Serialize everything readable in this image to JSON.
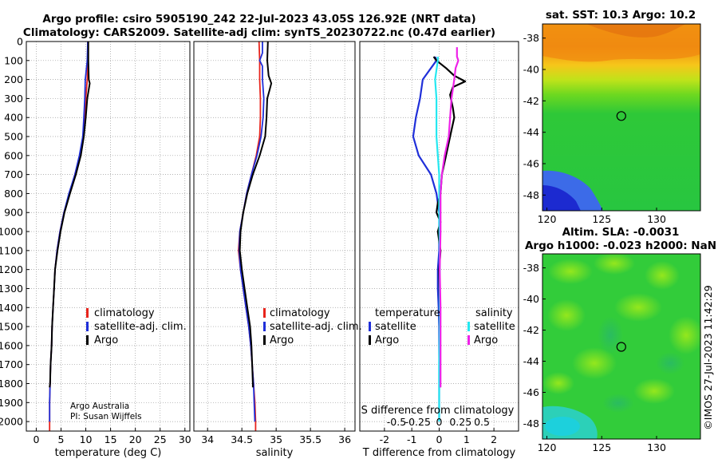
{
  "title_line1": "Argo profile: csiro 5905190_242 22-Jul-2023 43.05S 126.92E (NRT data)",
  "title_line2": "Climatology: CARS2009. Satellite-adj clim: synTS_20230722.nc (0.47d earlier)",
  "watermark": "©IMOS 27-Jul-2023 11:42:29",
  "colors": {
    "climatology": "#e8241c",
    "satellite": "#1f2fd9",
    "argo": "#000000",
    "t_sat": "#25e8f0",
    "s_sat": "#ee22e8"
  },
  "legend_labels": {
    "climatology": "climatology",
    "satellite": "satellite-adj. clim.",
    "argo": "Argo"
  },
  "diff_legend": {
    "temperature": "temperature",
    "salinity": "salinity",
    "satellite": "satellite",
    "argo": "Argo"
  },
  "credits": {
    "line1": "Argo Australia",
    "line2": "PI: Susan Wijffels"
  },
  "sst_title": "sat. SST: 10.3 Argo: 10.2",
  "sla_title1": "Altim. SLA: -0.0031",
  "sla_title2": "Argo h1000: -0.023 h2000: NaN",
  "map_xticks": [
    "120",
    "125",
    "130"
  ],
  "map_yticks": [
    "-38",
    "-40",
    "-42",
    "-44",
    "-46",
    "-48"
  ],
  "chart_data": [
    {
      "type": "line",
      "name": "temperature",
      "xlabel": "temperature (deg C)",
      "ylabel": "",
      "xlim": [
        -2,
        31
      ],
      "ylim": [
        2050,
        0
      ],
      "xticks": [
        0,
        5,
        10,
        15,
        20,
        25,
        30
      ],
      "yticks": [
        0,
        100,
        200,
        300,
        400,
        500,
        600,
        700,
        800,
        900,
        1000,
        1100,
        1200,
        1300,
        1400,
        1500,
        1600,
        1700,
        1800,
        1900,
        2000
      ],
      "series": [
        {
          "name": "climatology",
          "color": "#e8241c",
          "width": 1.8,
          "points": [
            [
              10.4,
              0
            ],
            [
              10.4,
              100
            ],
            [
              10.3,
              200
            ],
            [
              10.0,
              300
            ],
            [
              9.8,
              400
            ],
            [
              9.5,
              500
            ],
            [
              8.8,
              600
            ],
            [
              7.8,
              700
            ],
            [
              6.7,
              800
            ],
            [
              5.6,
              900
            ],
            [
              4.8,
              1000
            ],
            [
              4.2,
              1100
            ],
            [
              3.8,
              1200
            ],
            [
              3.6,
              1300
            ],
            [
              3.4,
              1400
            ],
            [
              3.2,
              1500
            ],
            [
              3.1,
              1600
            ],
            [
              2.9,
              1700
            ],
            [
              2.8,
              1800
            ],
            [
              2.7,
              1900
            ],
            [
              2.7,
              2000
            ],
            [
              2.7,
              2050
            ]
          ]
        },
        {
          "name": "satellite",
          "color": "#1f2fd9",
          "width": 1.8,
          "points": [
            [
              10.4,
              0
            ],
            [
              10.3,
              100
            ],
            [
              9.9,
              200
            ],
            [
              9.8,
              300
            ],
            [
              9.6,
              400
            ],
            [
              9.4,
              500
            ],
            [
              8.7,
              600
            ],
            [
              7.8,
              700
            ],
            [
              6.6,
              800
            ],
            [
              5.6,
              900
            ],
            [
              4.8,
              1000
            ],
            [
              4.2,
              1100
            ],
            [
              3.8,
              1200
            ],
            [
              3.6,
              1300
            ],
            [
              3.4,
              1400
            ],
            [
              3.2,
              1500
            ],
            [
              3.1,
              1600
            ],
            [
              2.9,
              1700
            ],
            [
              2.8,
              1800
            ],
            [
              2.7,
              1900
            ],
            [
              2.7,
              2000
            ]
          ]
        },
        {
          "name": "argo",
          "color": "#000000",
          "width": 2.0,
          "points": [
            [
              10.5,
              0
            ],
            [
              10.5,
              100
            ],
            [
              10.6,
              200
            ],
            [
              10.8,
              220
            ],
            [
              10.3,
              300
            ],
            [
              10.0,
              400
            ],
            [
              9.6,
              500
            ],
            [
              9.0,
              600
            ],
            [
              8.0,
              700
            ],
            [
              6.8,
              800
            ],
            [
              5.7,
              900
            ],
            [
              4.9,
              1000
            ],
            [
              4.3,
              1100
            ],
            [
              3.8,
              1200
            ],
            [
              3.6,
              1300
            ],
            [
              3.4,
              1400
            ],
            [
              3.2,
              1500
            ],
            [
              3.1,
              1600
            ],
            [
              2.9,
              1700
            ],
            [
              2.8,
              1800
            ],
            [
              2.7,
              1820
            ]
          ]
        }
      ]
    },
    {
      "type": "line",
      "name": "salinity",
      "xlabel": "salinity",
      "ylabel": "",
      "xlim": [
        33.8,
        36.15
      ],
      "ylim": [
        2050,
        0
      ],
      "xticks": [
        34,
        34.5,
        35,
        35.5,
        36
      ],
      "yticks": [
        0,
        100,
        200,
        300,
        400,
        500,
        600,
        700,
        800,
        900,
        1000,
        1100,
        1200,
        1300,
        1400,
        1500,
        1600,
        1700,
        1800,
        1900,
        2000
      ],
      "series": [
        {
          "name": "climatology",
          "color": "#e8241c",
          "width": 1.8,
          "points": [
            [
              34.75,
              0
            ],
            [
              34.76,
              100
            ],
            [
              34.76,
              200
            ],
            [
              34.77,
              300
            ],
            [
              34.77,
              400
            ],
            [
              34.76,
              500
            ],
            [
              34.71,
              600
            ],
            [
              34.64,
              700
            ],
            [
              34.57,
              800
            ],
            [
              34.52,
              900
            ],
            [
              34.47,
              1000
            ],
            [
              34.45,
              1100
            ],
            [
              34.48,
              1200
            ],
            [
              34.52,
              1300
            ],
            [
              34.56,
              1400
            ],
            [
              34.6,
              1500
            ],
            [
              34.63,
              1600
            ],
            [
              34.65,
              1700
            ],
            [
              34.67,
              1800
            ],
            [
              34.69,
              1900
            ],
            [
              34.7,
              2000
            ],
            [
              34.7,
              2050
            ]
          ]
        },
        {
          "name": "satellite",
          "color": "#1f2fd9",
          "width": 1.8,
          "points": [
            [
              34.8,
              0
            ],
            [
              34.8,
              60
            ],
            [
              34.76,
              100
            ],
            [
              34.8,
              130
            ],
            [
              34.8,
              200
            ],
            [
              34.82,
              300
            ],
            [
              34.81,
              400
            ],
            [
              34.78,
              500
            ],
            [
              34.72,
              600
            ],
            [
              34.64,
              700
            ],
            [
              34.57,
              800
            ],
            [
              34.52,
              900
            ],
            [
              34.47,
              1000
            ],
            [
              34.46,
              1100
            ],
            [
              34.48,
              1200
            ],
            [
              34.52,
              1300
            ],
            [
              34.56,
              1400
            ],
            [
              34.6,
              1500
            ],
            [
              34.63,
              1600
            ],
            [
              34.65,
              1700
            ],
            [
              34.67,
              1800
            ],
            [
              34.68,
              1900
            ],
            [
              34.69,
              2000
            ]
          ]
        },
        {
          "name": "argo",
          "color": "#000000",
          "width": 2.0,
          "points": [
            [
              34.88,
              0
            ],
            [
              34.87,
              100
            ],
            [
              34.89,
              180
            ],
            [
              34.93,
              220
            ],
            [
              34.9,
              260
            ],
            [
              34.87,
              300
            ],
            [
              34.86,
              400
            ],
            [
              34.84,
              500
            ],
            [
              34.76,
              600
            ],
            [
              34.66,
              700
            ],
            [
              34.58,
              800
            ],
            [
              34.52,
              900
            ],
            [
              34.48,
              1000
            ],
            [
              34.47,
              1100
            ],
            [
              34.5,
              1200
            ],
            [
              34.54,
              1300
            ],
            [
              34.58,
              1400
            ],
            [
              34.62,
              1500
            ],
            [
              34.64,
              1600
            ],
            [
              34.65,
              1700
            ],
            [
              34.66,
              1800
            ],
            [
              34.66,
              1820
            ]
          ]
        }
      ]
    },
    {
      "type": "line",
      "name": "difference",
      "xlabel": "T difference from climatology",
      "xlabel_top": "S difference from climatology",
      "xlim": [
        -2.9,
        2.9
      ],
      "ylim": [
        2050,
        0
      ],
      "xticks": [
        -2,
        -1,
        0,
        1,
        2
      ],
      "top_ticks": [
        "-0.5",
        "-0.25",
        "0",
        "0.25",
        "0.5"
      ],
      "series": [
        {
          "name": "temperature satellite",
          "color": "#1f2fd9",
          "width": 2.2,
          "points": [
            [
              -0.15,
              80
            ],
            [
              -0.1,
              100
            ],
            [
              -0.3,
              140
            ],
            [
              -0.6,
              200
            ],
            [
              -0.7,
              300
            ],
            [
              -0.85,
              400
            ],
            [
              -0.95,
              500
            ],
            [
              -0.75,
              600
            ],
            [
              -0.3,
              700
            ],
            [
              -0.1,
              800
            ],
            [
              0,
              900
            ],
            [
              0,
              1000
            ],
            [
              0,
              1100
            ],
            [
              -0.05,
              1200
            ],
            [
              -0.05,
              1300
            ],
            [
              -0.02,
              1400
            ],
            [
              0,
              1500
            ],
            [
              0,
              1700
            ],
            [
              0,
              2000
            ]
          ]
        },
        {
          "name": "temperature argo",
          "color": "#000000",
          "width": 2.2,
          "points": [
            [
              -0.2,
              80
            ],
            [
              -0.1,
              100
            ],
            [
              0.25,
              140
            ],
            [
              0.55,
              180
            ],
            [
              0.95,
              210
            ],
            [
              0.5,
              240
            ],
            [
              0.4,
              280
            ],
            [
              0.5,
              350
            ],
            [
              0.55,
              400
            ],
            [
              0.4,
              500
            ],
            [
              0.25,
              600
            ],
            [
              0.1,
              700
            ],
            [
              0.05,
              800
            ],
            [
              -0.05,
              850
            ],
            [
              -0.1,
              900
            ],
            [
              0.05,
              950
            ],
            [
              -0.05,
              1000
            ],
            [
              0.05,
              1100
            ],
            [
              0,
              1200
            ],
            [
              0.02,
              1400
            ],
            [
              0.02,
              1600
            ],
            [
              0.02,
              1800
            ],
            [
              0.02,
              1820
            ]
          ]
        },
        {
          "name": "salinity satellite",
          "color": "#25e8f0",
          "width": 2.2,
          "points": [
            [
              -0.05,
              80
            ],
            [
              -0.05,
              100
            ],
            [
              -0.1,
              150
            ],
            [
              -0.15,
              200
            ],
            [
              -0.1,
              300
            ],
            [
              -0.1,
              400
            ],
            [
              -0.1,
              500
            ],
            [
              -0.05,
              600
            ],
            [
              0,
              700
            ],
            [
              0,
              900
            ],
            [
              0.02,
              1100
            ],
            [
              0.02,
              1300
            ],
            [
              0.02,
              1500
            ],
            [
              0,
              1700
            ],
            [
              0,
              2000
            ]
          ]
        },
        {
          "name": "salinity argo",
          "color": "#ee22e8",
          "width": 2.2,
          "points": [
            [
              0.65,
              30
            ],
            [
              0.65,
              80
            ],
            [
              0.7,
              100
            ],
            [
              0.6,
              140
            ],
            [
              0.55,
              200
            ],
            [
              0.5,
              250
            ],
            [
              0.45,
              300
            ],
            [
              0.4,
              400
            ],
            [
              0.35,
              500
            ],
            [
              0.2,
              600
            ],
            [
              0.1,
              700
            ],
            [
              0.05,
              800
            ],
            [
              0.05,
              1000
            ],
            [
              0.02,
              1200
            ],
            [
              0.05,
              1400
            ],
            [
              0.05,
              1600
            ],
            [
              0.05,
              1800
            ],
            [
              0.05,
              1820
            ]
          ]
        }
      ]
    }
  ]
}
